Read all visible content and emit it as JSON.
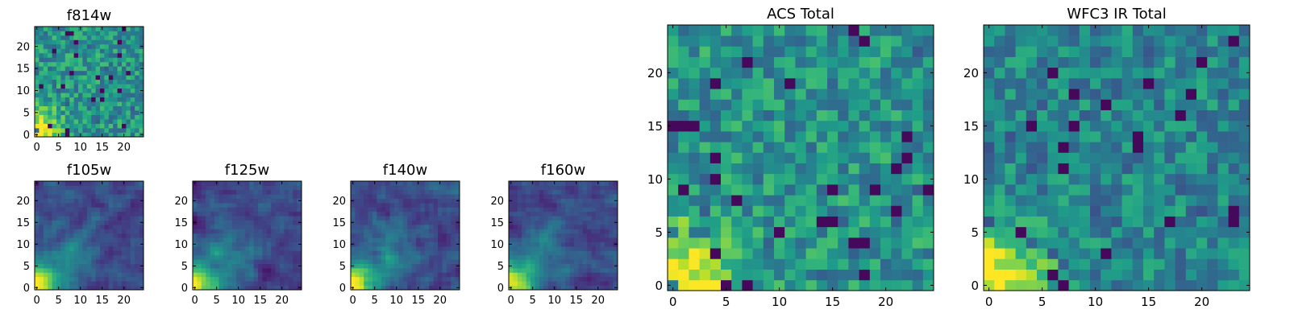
{
  "chart_data": [
    {
      "type": "heatmap",
      "title": "f814w",
      "colormap": "viridis",
      "xlim": [
        -0.5,
        24.5
      ],
      "ylim": [
        -0.5,
        24.5
      ],
      "xticks": [
        0,
        5,
        10,
        15,
        20
      ],
      "yticks": [
        0,
        5,
        10,
        15,
        20
      ],
      "seed": 11,
      "peak": "bottom-left",
      "texture": "noisy-bright"
    },
    {
      "type": "heatmap",
      "title": "f105w",
      "colormap": "viridis",
      "xlim": [
        -0.5,
        24.5
      ],
      "ylim": [
        -0.5,
        24.5
      ],
      "xticks": [
        0,
        5,
        10,
        15,
        20
      ],
      "yticks": [
        0,
        5,
        10,
        15,
        20
      ],
      "seed": 23,
      "peak": "bottom-left",
      "texture": "smooth-dark"
    },
    {
      "type": "heatmap",
      "title": "f125w",
      "colormap": "viridis",
      "xlim": [
        -0.5,
        24.5
      ],
      "ylim": [
        -0.5,
        24.5
      ],
      "xticks": [
        0,
        5,
        10,
        15,
        20
      ],
      "yticks": [
        0,
        5,
        10,
        15,
        20
      ],
      "seed": 37,
      "peak": "bottom-left",
      "texture": "smooth-dark"
    },
    {
      "type": "heatmap",
      "title": "f140w",
      "colormap": "viridis",
      "xlim": [
        -0.5,
        24.5
      ],
      "ylim": [
        -0.5,
        24.5
      ],
      "xticks": [
        0,
        5,
        10,
        15,
        20
      ],
      "yticks": [
        0,
        5,
        10,
        15,
        20
      ],
      "seed": 41,
      "peak": "bottom-left",
      "texture": "smooth-dark"
    },
    {
      "type": "heatmap",
      "title": "f160w",
      "colormap": "viridis",
      "xlim": [
        -0.5,
        24.5
      ],
      "ylim": [
        -0.5,
        24.5
      ],
      "xticks": [
        0,
        5,
        10,
        15,
        20
      ],
      "yticks": [
        0,
        5,
        10,
        15,
        20
      ],
      "seed": 53,
      "peak": "bottom-left",
      "texture": "smooth-dark"
    },
    {
      "type": "heatmap",
      "title": "ACS Total",
      "colormap": "viridis",
      "xlim": [
        -0.5,
        24.5
      ],
      "ylim": [
        -0.5,
        24.5
      ],
      "xticks": [
        0,
        5,
        10,
        15,
        20
      ],
      "yticks": [
        0,
        5,
        10,
        15,
        20
      ],
      "seed": 67,
      "peak": "bottom-left",
      "texture": "noisy-bright"
    },
    {
      "type": "heatmap",
      "title": "WFC3 IR Total",
      "colormap": "viridis",
      "xlim": [
        -0.5,
        24.5
      ],
      "ylim": [
        -0.5,
        24.5
      ],
      "xticks": [
        0,
        5,
        10,
        15,
        20
      ],
      "yticks": [
        0,
        5,
        10,
        15,
        20
      ],
      "seed": 79,
      "peak": "bottom-left",
      "texture": "noisy-mid"
    }
  ],
  "colors": {
    "viridis": [
      "#440154",
      "#482878",
      "#3e4989",
      "#31688e",
      "#26828e",
      "#1f9e89",
      "#35b779",
      "#6ece58",
      "#b5de2b",
      "#fde725"
    ],
    "axis": "#000000",
    "background": "#ffffff"
  }
}
